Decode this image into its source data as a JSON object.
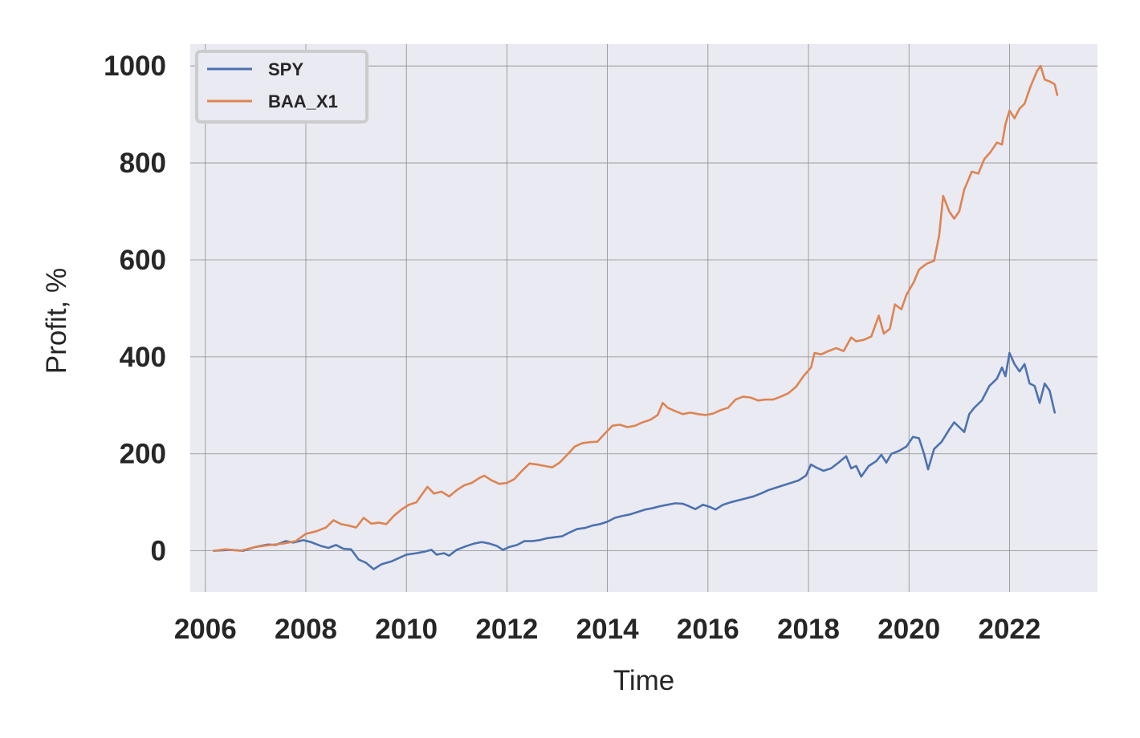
{
  "chart_data": {
    "type": "line",
    "xlabel": "Time",
    "ylabel": "Profit, %",
    "xlim": [
      2005.7,
      2023.75
    ],
    "ylim": [
      -85,
      1045
    ],
    "xticks": [
      2006,
      2008,
      2010,
      2012,
      2014,
      2016,
      2018,
      2020,
      2022
    ],
    "yticks": [
      0,
      200,
      400,
      600,
      800,
      1000
    ],
    "grid": true,
    "legend_position": "top-left",
    "background_color": "#eaeaf2",
    "series": [
      {
        "name": "SPY",
        "color": "#4c72b0",
        "points": [
          [
            2006.17,
            0
          ],
          [
            2006.5,
            2
          ],
          [
            2006.75,
            0
          ],
          [
            2007.0,
            8
          ],
          [
            2007.25,
            13
          ],
          [
            2007.4,
            12
          ],
          [
            2007.6,
            20
          ],
          [
            2007.75,
            17
          ],
          [
            2007.95,
            22
          ],
          [
            2008.1,
            18
          ],
          [
            2008.3,
            10
          ],
          [
            2008.45,
            6
          ],
          [
            2008.6,
            12
          ],
          [
            2008.75,
            4
          ],
          [
            2008.9,
            3
          ],
          [
            2009.05,
            -18
          ],
          [
            2009.2,
            -25
          ],
          [
            2009.35,
            -38
          ],
          [
            2009.5,
            -28
          ],
          [
            2009.7,
            -22
          ],
          [
            2009.85,
            -15
          ],
          [
            2010.0,
            -8
          ],
          [
            2010.2,
            -5
          ],
          [
            2010.35,
            -2
          ],
          [
            2010.5,
            2
          ],
          [
            2010.6,
            -8
          ],
          [
            2010.75,
            -5
          ],
          [
            2010.85,
            -10
          ],
          [
            2011.0,
            2
          ],
          [
            2011.2,
            10
          ],
          [
            2011.35,
            15
          ],
          [
            2011.5,
            18
          ],
          [
            2011.65,
            15
          ],
          [
            2011.8,
            10
          ],
          [
            2011.92,
            2
          ],
          [
            2012.05,
            8
          ],
          [
            2012.2,
            12
          ],
          [
            2012.35,
            20
          ],
          [
            2012.5,
            20
          ],
          [
            2012.65,
            22
          ],
          [
            2012.8,
            26
          ],
          [
            2012.95,
            28
          ],
          [
            2013.1,
            30
          ],
          [
            2013.25,
            38
          ],
          [
            2013.4,
            45
          ],
          [
            2013.55,
            47
          ],
          [
            2013.7,
            52
          ],
          [
            2013.85,
            55
          ],
          [
            2014.0,
            60
          ],
          [
            2014.15,
            68
          ],
          [
            2014.3,
            72
          ],
          [
            2014.45,
            75
          ],
          [
            2014.6,
            80
          ],
          [
            2014.75,
            85
          ],
          [
            2014.9,
            88
          ],
          [
            2015.05,
            92
          ],
          [
            2015.2,
            95
          ],
          [
            2015.35,
            98
          ],
          [
            2015.5,
            97
          ],
          [
            2015.6,
            93
          ],
          [
            2015.75,
            86
          ],
          [
            2015.9,
            95
          ],
          [
            2016.05,
            90
          ],
          [
            2016.15,
            85
          ],
          [
            2016.3,
            95
          ],
          [
            2016.45,
            100
          ],
          [
            2016.6,
            104
          ],
          [
            2016.75,
            108
          ],
          [
            2016.9,
            112
          ],
          [
            2017.05,
            118
          ],
          [
            2017.2,
            125
          ],
          [
            2017.35,
            130
          ],
          [
            2017.5,
            135
          ],
          [
            2017.65,
            140
          ],
          [
            2017.8,
            145
          ],
          [
            2017.95,
            155
          ],
          [
            2018.05,
            178
          ],
          [
            2018.15,
            172
          ],
          [
            2018.3,
            165
          ],
          [
            2018.45,
            170
          ],
          [
            2018.6,
            182
          ],
          [
            2018.75,
            195
          ],
          [
            2018.85,
            170
          ],
          [
            2018.95,
            175
          ],
          [
            2019.05,
            153
          ],
          [
            2019.2,
            175
          ],
          [
            2019.35,
            185
          ],
          [
            2019.45,
            198
          ],
          [
            2019.55,
            182
          ],
          [
            2019.65,
            200
          ],
          [
            2019.8,
            206
          ],
          [
            2019.95,
            215
          ],
          [
            2020.08,
            235
          ],
          [
            2020.2,
            232
          ],
          [
            2020.3,
            200
          ],
          [
            2020.38,
            168
          ],
          [
            2020.5,
            210
          ],
          [
            2020.65,
            225
          ],
          [
            2020.8,
            250
          ],
          [
            2020.9,
            265
          ],
          [
            2021.0,
            255
          ],
          [
            2021.1,
            245
          ],
          [
            2021.2,
            282
          ],
          [
            2021.3,
            295
          ],
          [
            2021.45,
            310
          ],
          [
            2021.6,
            340
          ],
          [
            2021.75,
            355
          ],
          [
            2021.85,
            378
          ],
          [
            2021.92,
            360
          ],
          [
            2022.0,
            408
          ],
          [
            2022.1,
            385
          ],
          [
            2022.2,
            370
          ],
          [
            2022.3,
            385
          ],
          [
            2022.4,
            345
          ],
          [
            2022.5,
            340
          ],
          [
            2022.6,
            305
          ],
          [
            2022.7,
            345
          ],
          [
            2022.8,
            330
          ],
          [
            2022.9,
            285
          ]
        ]
      },
      {
        "name": "BAA_X1",
        "color": "#dd8452",
        "points": [
          [
            2006.17,
            0
          ],
          [
            2006.4,
            3
          ],
          [
            2006.7,
            0
          ],
          [
            2007.0,
            8
          ],
          [
            2007.3,
            12
          ],
          [
            2007.55,
            15
          ],
          [
            2007.8,
            20
          ],
          [
            2008.0,
            35
          ],
          [
            2008.2,
            40
          ],
          [
            2008.4,
            48
          ],
          [
            2008.55,
            63
          ],
          [
            2008.7,
            55
          ],
          [
            2008.85,
            52
          ],
          [
            2009.0,
            48
          ],
          [
            2009.15,
            68
          ],
          [
            2009.3,
            56
          ],
          [
            2009.45,
            58
          ],
          [
            2009.6,
            55
          ],
          [
            2009.75,
            72
          ],
          [
            2009.9,
            85
          ],
          [
            2010.05,
            95
          ],
          [
            2010.2,
            100
          ],
          [
            2010.3,
            115
          ],
          [
            2010.42,
            132
          ],
          [
            2010.55,
            118
          ],
          [
            2010.7,
            122
          ],
          [
            2010.85,
            112
          ],
          [
            2011.0,
            125
          ],
          [
            2011.15,
            135
          ],
          [
            2011.3,
            140
          ],
          [
            2011.45,
            150
          ],
          [
            2011.55,
            155
          ],
          [
            2011.7,
            145
          ],
          [
            2011.85,
            138
          ],
          [
            2012.0,
            140
          ],
          [
            2012.15,
            148
          ],
          [
            2012.3,
            165
          ],
          [
            2012.45,
            180
          ],
          [
            2012.6,
            178
          ],
          [
            2012.75,
            175
          ],
          [
            2012.9,
            172
          ],
          [
            2013.05,
            182
          ],
          [
            2013.2,
            198
          ],
          [
            2013.35,
            215
          ],
          [
            2013.5,
            222
          ],
          [
            2013.65,
            224
          ],
          [
            2013.8,
            225
          ],
          [
            2013.95,
            242
          ],
          [
            2014.1,
            258
          ],
          [
            2014.25,
            260
          ],
          [
            2014.4,
            255
          ],
          [
            2014.55,
            258
          ],
          [
            2014.7,
            265
          ],
          [
            2014.85,
            270
          ],
          [
            2015.0,
            280
          ],
          [
            2015.1,
            305
          ],
          [
            2015.2,
            295
          ],
          [
            2015.35,
            288
          ],
          [
            2015.5,
            282
          ],
          [
            2015.65,
            285
          ],
          [
            2015.8,
            282
          ],
          [
            2015.95,
            280
          ],
          [
            2016.1,
            283
          ],
          [
            2016.25,
            290
          ],
          [
            2016.4,
            295
          ],
          [
            2016.55,
            312
          ],
          [
            2016.7,
            318
          ],
          [
            2016.85,
            316
          ],
          [
            2017.0,
            310
          ],
          [
            2017.15,
            312
          ],
          [
            2017.3,
            312
          ],
          [
            2017.45,
            318
          ],
          [
            2017.6,
            325
          ],
          [
            2017.75,
            338
          ],
          [
            2017.9,
            360
          ],
          [
            2018.05,
            378
          ],
          [
            2018.12,
            408
          ],
          [
            2018.25,
            405
          ],
          [
            2018.4,
            412
          ],
          [
            2018.55,
            418
          ],
          [
            2018.7,
            412
          ],
          [
            2018.85,
            440
          ],
          [
            2018.95,
            432
          ],
          [
            2019.1,
            435
          ],
          [
            2019.25,
            442
          ],
          [
            2019.4,
            485
          ],
          [
            2019.5,
            448
          ],
          [
            2019.62,
            458
          ],
          [
            2019.72,
            508
          ],
          [
            2019.85,
            498
          ],
          [
            2019.95,
            528
          ],
          [
            2020.1,
            555
          ],
          [
            2020.2,
            580
          ],
          [
            2020.35,
            592
          ],
          [
            2020.5,
            598
          ],
          [
            2020.6,
            650
          ],
          [
            2020.68,
            732
          ],
          [
            2020.8,
            700
          ],
          [
            2020.9,
            685
          ],
          [
            2021.0,
            700
          ],
          [
            2021.1,
            745
          ],
          [
            2021.25,
            782
          ],
          [
            2021.38,
            778
          ],
          [
            2021.5,
            808
          ],
          [
            2021.62,
            822
          ],
          [
            2021.75,
            842
          ],
          [
            2021.85,
            838
          ],
          [
            2021.92,
            880
          ],
          [
            2022.0,
            908
          ],
          [
            2022.1,
            892
          ],
          [
            2022.2,
            912
          ],
          [
            2022.3,
            922
          ],
          [
            2022.42,
            958
          ],
          [
            2022.55,
            990
          ],
          [
            2022.62,
            1000
          ],
          [
            2022.7,
            972
          ],
          [
            2022.8,
            968
          ],
          [
            2022.9,
            962
          ],
          [
            2022.95,
            940
          ]
        ]
      }
    ]
  }
}
